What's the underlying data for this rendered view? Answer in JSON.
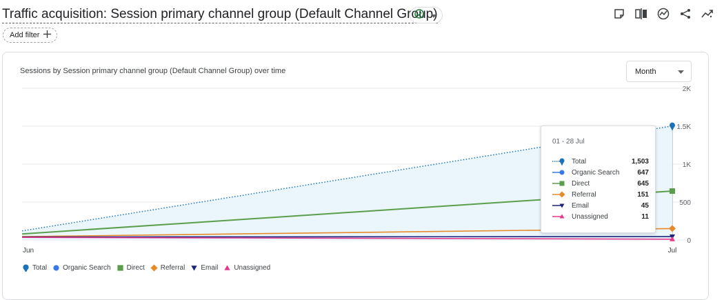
{
  "header": {
    "title": "Traffic acquisition: Session primary channel group (Default Channel Group)",
    "status_icon": "check-circle-icon",
    "toolbar_icons": [
      "note-icon",
      "compare-icon",
      "insights-icon",
      "share-icon",
      "trend-icon"
    ]
  },
  "filter": {
    "add_label": "Add filter"
  },
  "card": {
    "title": "Sessions by Session primary channel group (Default Channel Group) over time",
    "period": "Month"
  },
  "colors": {
    "Total": "#1a73b8",
    "Organic Search": "#3b78e7",
    "Direct": "#5a9e4b",
    "Referral": "#e8892b",
    "Email": "#1a237e",
    "Unassigned": "#e2398c"
  },
  "chart_data": {
    "type": "line",
    "title": "Sessions by Session primary channel group (Default Channel Group) over time",
    "categories": [
      "Jun",
      "Jul"
    ],
    "ylim": [
      0,
      2000
    ],
    "yticks": [
      "0",
      "500",
      "1K",
      "1.5K",
      "2K"
    ],
    "y_axis_side": "right",
    "grid": true,
    "legend_position": "bottom-left",
    "series": [
      {
        "name": "Total",
        "values": [
          120,
          1503
        ],
        "marker": "pin",
        "style": "dotted-area"
      },
      {
        "name": "Organic Search",
        "values": [
          null,
          647
        ],
        "marker": "circle",
        "style": "solid"
      },
      {
        "name": "Direct",
        "values": [
          80,
          645
        ],
        "marker": "square",
        "style": "solid"
      },
      {
        "name": "Referral",
        "values": [
          45,
          151
        ],
        "marker": "diamond",
        "style": "solid"
      },
      {
        "name": "Email",
        "values": [
          40,
          45
        ],
        "marker": "triangle-down",
        "style": "solid"
      },
      {
        "name": "Unassigned",
        "values": [
          35,
          11
        ],
        "marker": "triangle-up",
        "style": "solid"
      }
    ]
  },
  "legend": [
    {
      "label": "Total",
      "marker": "pin"
    },
    {
      "label": "Organic Search",
      "marker": "circle"
    },
    {
      "label": "Direct",
      "marker": "square"
    },
    {
      "label": "Referral",
      "marker": "diamond"
    },
    {
      "label": "Email",
      "marker": "triangle-down"
    },
    {
      "label": "Unassigned",
      "marker": "triangle-up"
    }
  ],
  "tooltip": {
    "date": "01 - 28 Jul",
    "rows": [
      {
        "name": "Total",
        "value": "1,503",
        "marker": "pin",
        "dotted": true
      },
      {
        "name": "Organic Search",
        "value": "647",
        "marker": "circle",
        "dotted": false
      },
      {
        "name": "Direct",
        "value": "645",
        "marker": "square",
        "dotted": false
      },
      {
        "name": "Referral",
        "value": "151",
        "marker": "diamond",
        "dotted": false
      },
      {
        "name": "Email",
        "value": "45",
        "marker": "triangle-down",
        "dotted": false
      },
      {
        "name": "Unassigned",
        "value": "11",
        "marker": "triangle-up",
        "dotted": false
      }
    ]
  }
}
